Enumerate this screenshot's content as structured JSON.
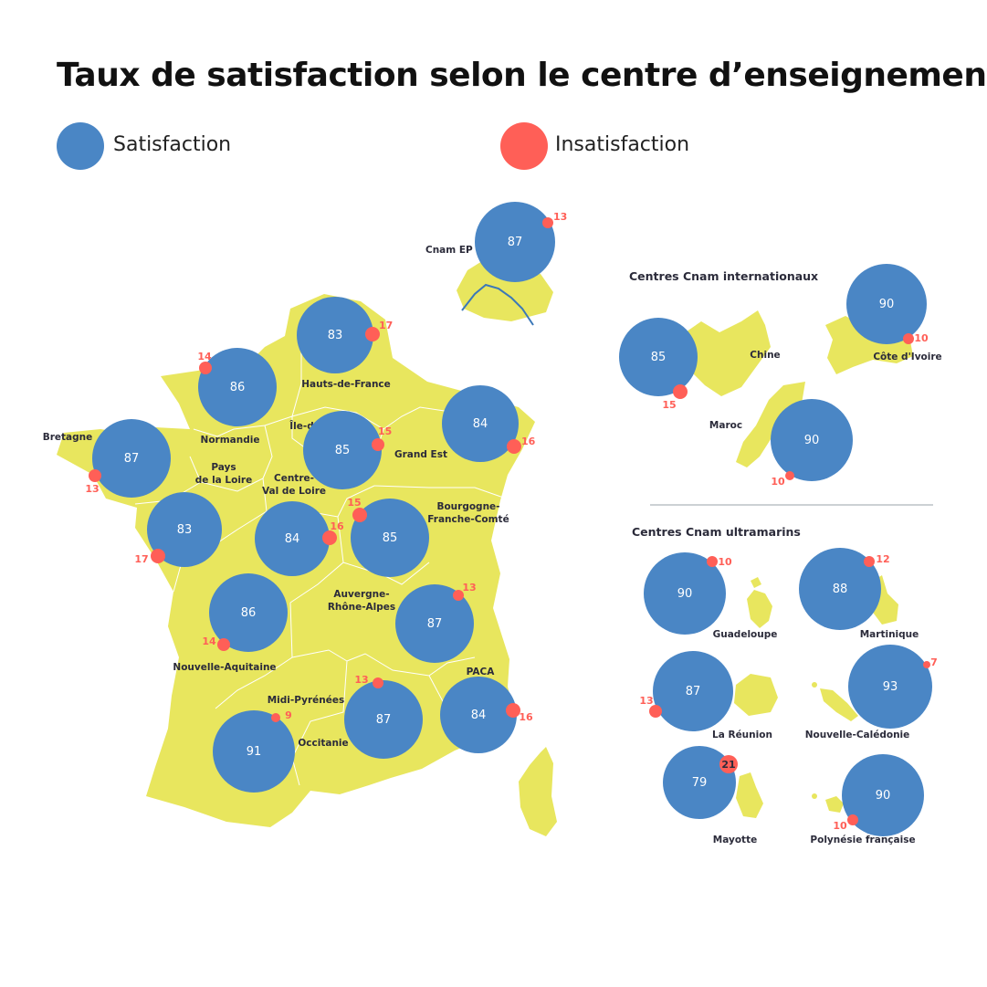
{
  "title": "Taux de satisfaction selon le centre d’enseignement",
  "legend": {
    "satisfaction": {
      "label": "Satisfaction",
      "color": "#4a86c5"
    },
    "insatisfaction": {
      "label": "Insatisfaction",
      "color": "#ff5f57"
    }
  },
  "colors": {
    "land": "#e8e65e",
    "borders": "#ffffff",
    "seine": "#3b78b8",
    "divider": "#9aa3a8"
  },
  "sections": {
    "international": "Centres Cnam internationaux",
    "overseas": "Centres Cnam ultramarins"
  },
  "centres": [
    {
      "id": "cnam-ep",
      "name": "Cnam EP",
      "satisfaction": 87,
      "insatisfaction": 13
    },
    {
      "id": "hauts-de-france",
      "name": "Hauts-de-France",
      "satisfaction": 83,
      "insatisfaction": 17
    },
    {
      "id": "normandie",
      "name": "Normandie",
      "satisfaction": 86,
      "insatisfaction": 14
    },
    {
      "id": "ile-de-france",
      "name": "Île-de-France",
      "satisfaction": 85,
      "insatisfaction": 15
    },
    {
      "id": "grand-est",
      "name": "Grand Est",
      "satisfaction": 84,
      "insatisfaction": 16
    },
    {
      "id": "bretagne",
      "name": "Bretagne",
      "satisfaction": 87,
      "insatisfaction": 13
    },
    {
      "id": "pays-de-la-loire",
      "name": "Pays\nde la Loire",
      "satisfaction": 83,
      "insatisfaction": 17
    },
    {
      "id": "centre-val-de-loire",
      "name": "Centre-\nVal de Loire",
      "satisfaction": 84,
      "insatisfaction": 16
    },
    {
      "id": "bourgogne-franche-comte",
      "name": "Bourgogne-\nFranche-Comté",
      "satisfaction": 85,
      "insatisfaction": 15
    },
    {
      "id": "nouvelle-aquitaine",
      "name": "Nouvelle-Aquitaine",
      "satisfaction": 86,
      "insatisfaction": 14
    },
    {
      "id": "auvergne-rhone-alpes",
      "name": "Auvergne-\nRhône-Alpes",
      "satisfaction": 87,
      "insatisfaction": 13
    },
    {
      "id": "midi-pyrenees",
      "name": "Midi-Pyrénées",
      "satisfaction": 91,
      "insatisfaction": 9
    },
    {
      "id": "occitanie",
      "name": "Occitanie",
      "satisfaction": 87,
      "insatisfaction": 13
    },
    {
      "id": "paca",
      "name": "PACA",
      "satisfaction": 84,
      "insatisfaction": 16
    },
    {
      "id": "chine",
      "name": "Chine",
      "satisfaction": 85,
      "insatisfaction": 15
    },
    {
      "id": "cote-d-ivoire",
      "name": "Côte d'Ivoire",
      "satisfaction": 90,
      "insatisfaction": 10
    },
    {
      "id": "maroc",
      "name": "Maroc",
      "satisfaction": 90,
      "insatisfaction": 10
    },
    {
      "id": "guadeloupe",
      "name": "Guadeloupe",
      "satisfaction": 90,
      "insatisfaction": 10
    },
    {
      "id": "martinique",
      "name": "Martinique",
      "satisfaction": 88,
      "insatisfaction": 12
    },
    {
      "id": "la-reunion",
      "name": "La Réunion",
      "satisfaction": 87,
      "insatisfaction": 13
    },
    {
      "id": "nouvelle-caledonie",
      "name": "Nouvelle-Calédonie",
      "satisfaction": 93,
      "insatisfaction": 7
    },
    {
      "id": "mayotte",
      "name": "Mayotte",
      "satisfaction": 79,
      "insatisfaction": 21
    },
    {
      "id": "polynesie-francaise",
      "name": "Polynésie française",
      "satisfaction": 90,
      "insatisfaction": 10
    }
  ]
}
